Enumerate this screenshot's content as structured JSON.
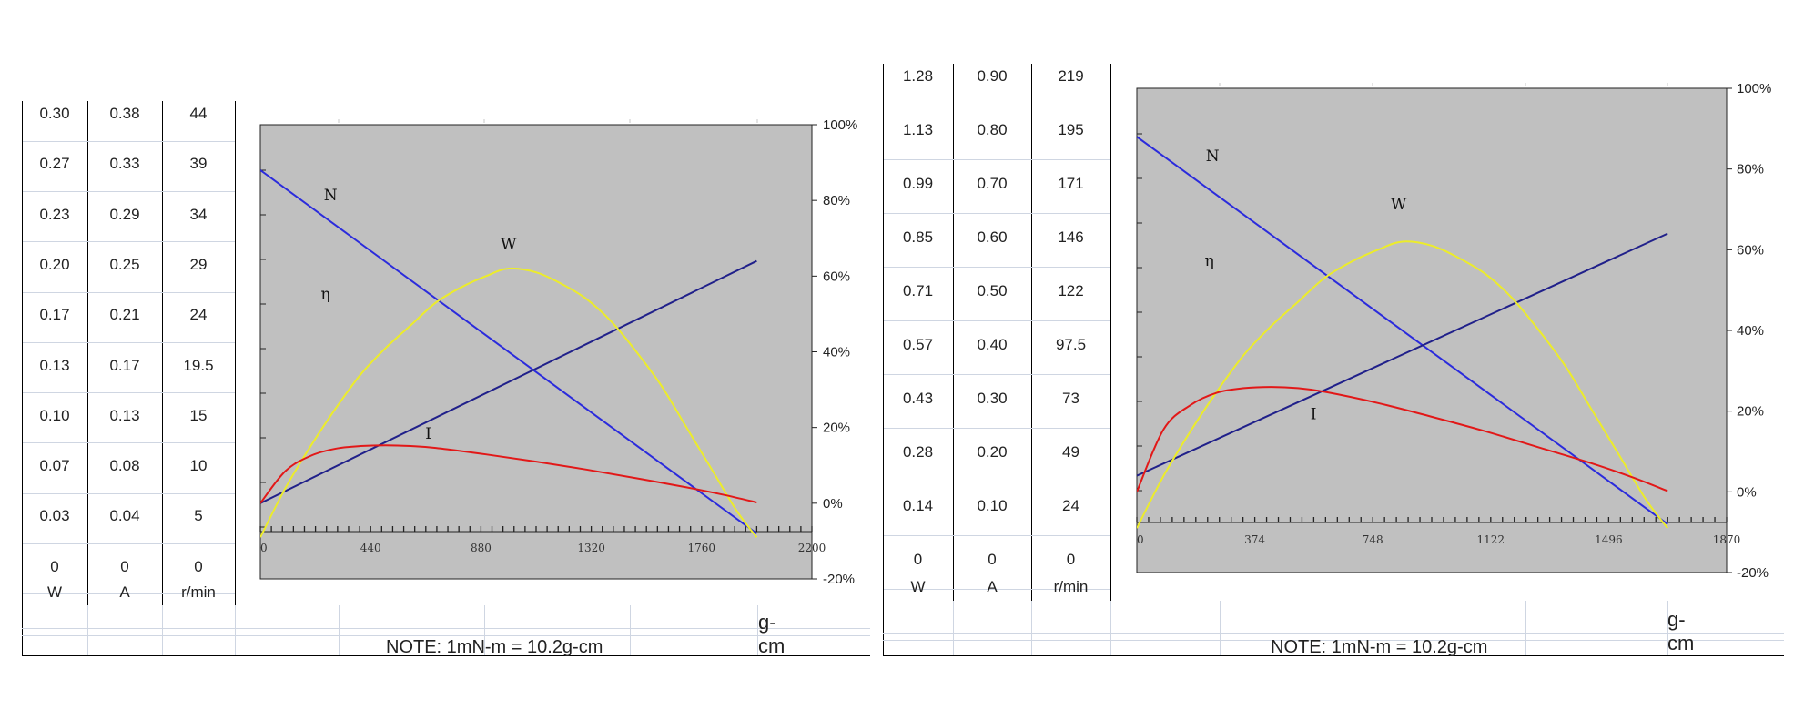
{
  "note_text": "NOTE: 1mN-m = 10.2g-cm",
  "unit_label": "g-cm",
  "panels": [
    {
      "table": {
        "headers": [
          "W",
          "A",
          "r/min"
        ],
        "rows": [
          [
            "0.30",
            "0.38",
            "44"
          ],
          [
            "0.27",
            "0.33",
            "39"
          ],
          [
            "0.23",
            "0.29",
            "34"
          ],
          [
            "0.20",
            "0.25",
            "29"
          ],
          [
            "0.17",
            "0.21",
            "24"
          ],
          [
            "0.13",
            "0.17",
            "19.5"
          ],
          [
            "0.10",
            "0.13",
            "15"
          ],
          [
            "0.07",
            "0.08",
            "10"
          ],
          [
            "0.03",
            "0.04",
            "5"
          ],
          [
            "0",
            "0",
            "0"
          ]
        ]
      }
    },
    {
      "table": {
        "headers": [
          "W",
          "A",
          "r/min"
        ],
        "rows": [
          [
            "1.28",
            "0.90",
            "219"
          ],
          [
            "1.13",
            "0.80",
            "195"
          ],
          [
            "0.99",
            "0.70",
            "171"
          ],
          [
            "0.85",
            "0.60",
            "146"
          ],
          [
            "0.71",
            "0.50",
            "122"
          ],
          [
            "0.57",
            "0.40",
            "97.5"
          ],
          [
            "0.43",
            "0.30",
            "73"
          ],
          [
            "0.28",
            "0.20",
            "49"
          ],
          [
            "0.14",
            "0.10",
            "24"
          ],
          [
            "0",
            "0",
            "0"
          ]
        ]
      }
    }
  ],
  "chart_data": [
    {
      "type": "line",
      "x_ticks": [
        "0",
        "440",
        "880",
        "1320",
        "1760",
        "2200"
      ],
      "xlim": [
        0,
        2200
      ],
      "y_ticks": [
        "100%",
        "80%",
        "60%",
        "40%",
        "20%",
        "0%",
        "-20%"
      ],
      "ylim": [
        -20,
        100
      ],
      "background": "#c0c0c0",
      "series": [
        {
          "name": "N",
          "color": "#2b2bdc",
          "x": [
            0,
            1980
          ],
          "y": [
            88,
            -8
          ]
        },
        {
          "name": "I",
          "color": "#20208a",
          "x": [
            0,
            1980
          ],
          "y": [
            0,
            64
          ]
        },
        {
          "name": "W",
          "color": "#ecec2a",
          "x": [
            0,
            100,
            200,
            300,
            400,
            500,
            600,
            700,
            800,
            900,
            990,
            1100,
            1200,
            1300,
            1400,
            1500,
            1600,
            1700,
            1800,
            1900,
            1980
          ],
          "y": [
            -9,
            4,
            15,
            25,
            34,
            41,
            47,
            53,
            57,
            60,
            62,
            61,
            58,
            54,
            48,
            40,
            31,
            20,
            9,
            -2,
            -9
          ]
        },
        {
          "name": "η",
          "color": "#e21818",
          "x": [
            0,
            100,
            200,
            300,
            400,
            500,
            600,
            700,
            900,
            1100,
            1300,
            1500,
            1700,
            1850,
            1980
          ],
          "y": [
            0,
            8.5,
            12.5,
            14.4,
            15.1,
            15.3,
            15.1,
            14.6,
            12.9,
            11,
            8.9,
            6.6,
            4.2,
            2.2,
            0.2
          ]
        }
      ],
      "annotations": [
        {
          "text": "N",
          "x": 280,
          "y": 80
        },
        {
          "text": "W",
          "x": 990,
          "y": 67
        },
        {
          "text": "η",
          "x": 260,
          "y": 54
        },
        {
          "text": "I",
          "x": 670,
          "y": 17
        }
      ]
    },
    {
      "type": "line",
      "x_ticks": [
        "0",
        "374",
        "748",
        "1122",
        "1496",
        "1870"
      ],
      "xlim": [
        0,
        1870
      ],
      "y_ticks": [
        "100%",
        "80%",
        "60%",
        "40%",
        "20%",
        "0%",
        "-20%"
      ],
      "ylim": [
        -20,
        100
      ],
      "background": "#c0c0c0",
      "series": [
        {
          "name": "N",
          "color": "#2b2bdc",
          "x": [
            0,
            1683
          ],
          "y": [
            88,
            -8
          ]
        },
        {
          "name": "I",
          "color": "#20208a",
          "x": [
            0,
            1683
          ],
          "y": [
            4,
            64
          ]
        },
        {
          "name": "W",
          "color": "#ecec2a",
          "x": [
            0,
            85,
            170,
            255,
            340,
            425,
            510,
            595,
            680,
            765,
            842,
            935,
            1020,
            1105,
            1190,
            1275,
            1360,
            1445,
            1530,
            1615,
            1683
          ],
          "y": [
            -9,
            4,
            15,
            25,
            34,
            41,
            47,
            53,
            57,
            60,
            62,
            61,
            58,
            54,
            48,
            40,
            31,
            20,
            9,
            -2,
            -9
          ]
        },
        {
          "name": "η",
          "color": "#e21818",
          "x": [
            0,
            85,
            170,
            255,
            340,
            425,
            510,
            595,
            765,
            935,
            1105,
            1275,
            1445,
            1575,
            1683
          ],
          "y": [
            0,
            15.5,
            21.5,
            24.6,
            25.7,
            26,
            25.7,
            24.8,
            22,
            18.6,
            15,
            11,
            7,
            3.5,
            0.2
          ]
        }
      ],
      "annotations": [
        {
          "text": "N",
          "x": 240,
          "y": 82
        },
        {
          "text": "W",
          "x": 830,
          "y": 70
        },
        {
          "text": "η",
          "x": 230,
          "y": 56
        },
        {
          "text": "I",
          "x": 560,
          "y": 18
        }
      ]
    }
  ]
}
